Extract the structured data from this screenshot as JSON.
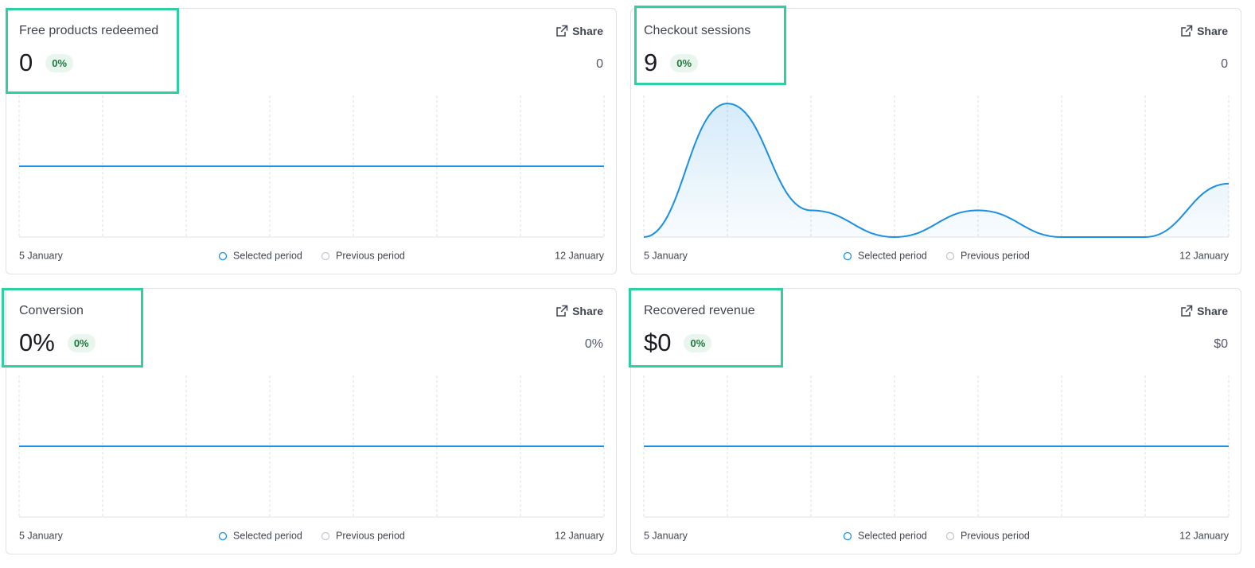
{
  "cards": [
    {
      "title": "Free products redeemed",
      "value": "0",
      "change": "0%",
      "previous": "0",
      "share": "Share",
      "legend": {
        "selected": "Selected period",
        "previous": "Previous period"
      },
      "chart": {
        "type": "line",
        "color": "#1a8fe3",
        "categories": [
          "5 January",
          null,
          null,
          null,
          null,
          null,
          null,
          "12 January"
        ],
        "values": [
          0,
          0,
          0,
          0,
          0,
          0,
          0,
          0
        ]
      }
    },
    {
      "title": "Checkout sessions",
      "value": "9",
      "change": "0%",
      "previous": "0",
      "share": "Share",
      "legend": {
        "selected": "Selected period",
        "previous": "Previous period"
      },
      "chart": {
        "type": "line",
        "color": "#1a8fe3",
        "categories": [
          "5 January",
          null,
          null,
          null,
          null,
          null,
          null,
          "12 January"
        ],
        "values": [
          0,
          5,
          1,
          0,
          1,
          0,
          0,
          2
        ]
      }
    },
    {
      "title": "Conversion",
      "value": "0%",
      "change": "0%",
      "previous": "0%",
      "share": "Share",
      "legend": {
        "selected": "Selected period",
        "previous": "Previous period"
      },
      "chart": {
        "type": "line",
        "color": "#1a8fe3",
        "categories": [
          "5 January",
          null,
          null,
          null,
          null,
          null,
          null,
          "12 January"
        ],
        "values": [
          0,
          0,
          0,
          0,
          0,
          0,
          0,
          0
        ]
      }
    },
    {
      "title": "Recovered revenue",
      "value": "$0",
      "change": "0%",
      "previous": "$0",
      "share": "Share",
      "legend": {
        "selected": "Selected period",
        "previous": "Previous period"
      },
      "chart": {
        "type": "line",
        "color": "#1a8fe3",
        "categories": [
          "5 January",
          null,
          null,
          null,
          null,
          null,
          null,
          "12 January"
        ],
        "values": [
          0,
          0,
          0,
          0,
          0,
          0,
          0,
          0
        ]
      }
    }
  ]
}
